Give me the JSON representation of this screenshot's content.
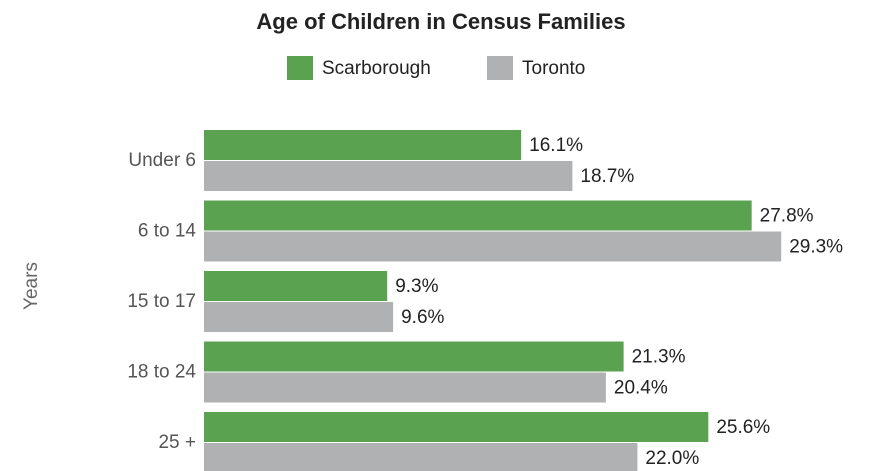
{
  "chart_data": {
    "type": "hbar",
    "title": "Age of Children in Census Families",
    "y_label": "Years",
    "categories": [
      "Under 6",
      "6 to 14",
      "15 to 17",
      "18 to 24",
      "25 +"
    ],
    "series": [
      {
        "name": "Scarborough",
        "color": "#5aa150",
        "values": [
          16.1,
          27.8,
          9.3,
          21.3,
          25.6
        ],
        "value_labels": [
          "16.1%",
          "27.8%",
          "9.3%",
          "21.3%",
          "25.6%"
        ]
      },
      {
        "name": "Toronto",
        "color": "#b0b1b3",
        "values": [
          18.7,
          29.3,
          9.6,
          20.4,
          22.0
        ],
        "value_labels": [
          "18.7%",
          "29.3%",
          "9.6%",
          "20.4%",
          "22.0%"
        ]
      }
    ],
    "legend": "top"
  }
}
